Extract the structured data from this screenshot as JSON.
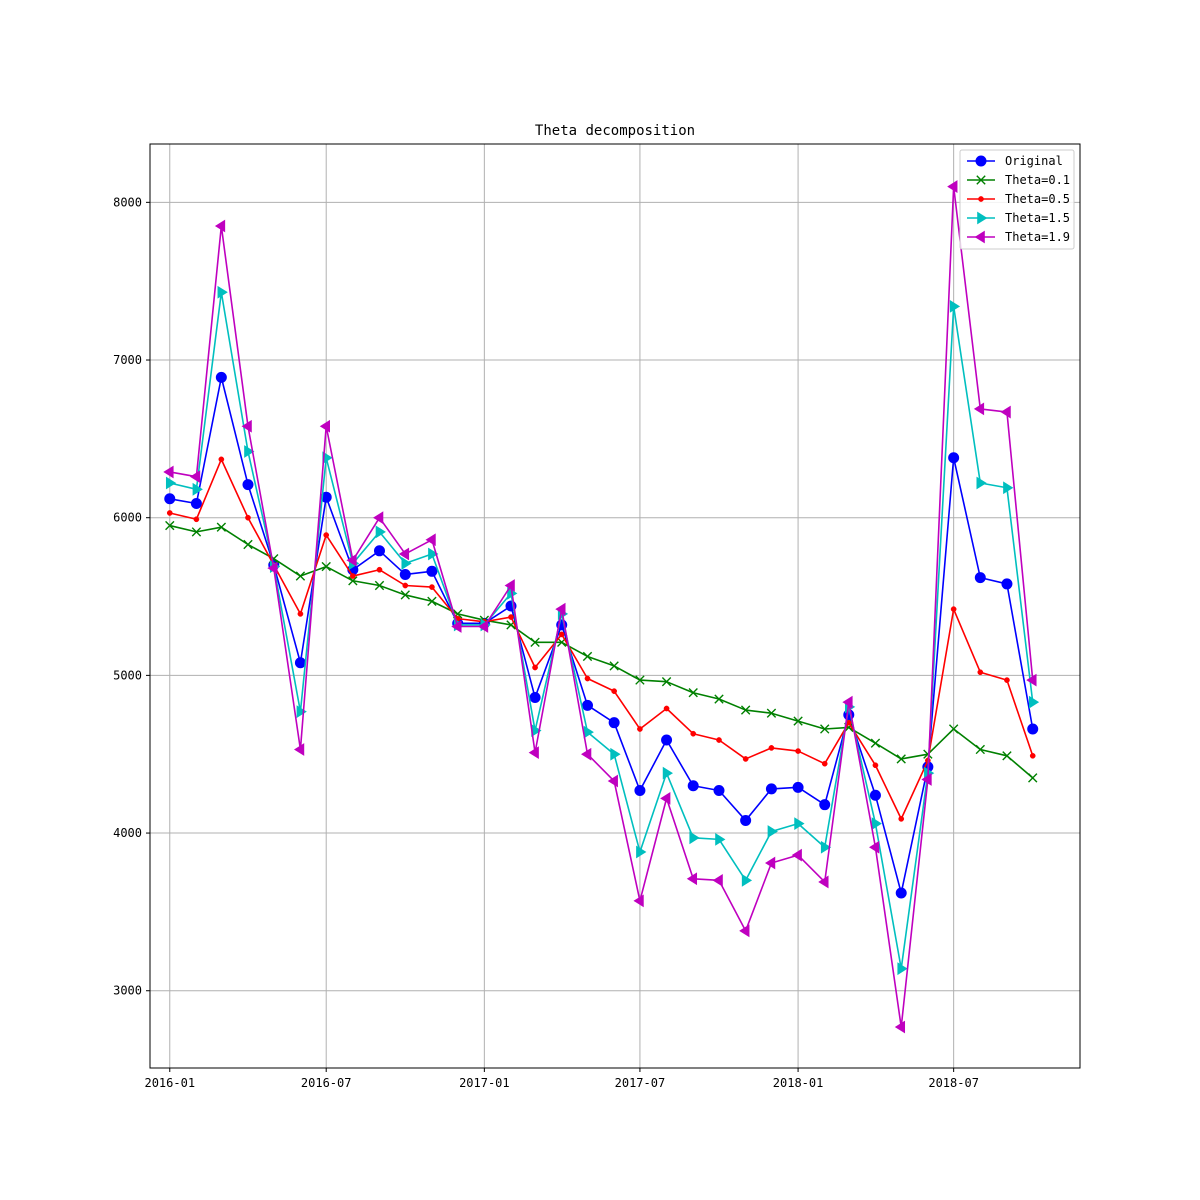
{
  "chart_data": {
    "type": "line",
    "title": "Theta decomposition",
    "xlabel": "",
    "ylabel": "",
    "x": [
      "2016-01",
      "2016-02",
      "2016-03",
      "2016-04",
      "2016-05",
      "2016-06",
      "2016-07",
      "2016-08",
      "2016-09",
      "2016-10",
      "2016-11",
      "2016-12",
      "2017-01",
      "2017-02",
      "2017-03",
      "2017-04",
      "2017-05",
      "2017-06",
      "2017-07",
      "2017-08",
      "2017-09",
      "2017-10",
      "2017-11",
      "2017-12",
      "2018-01",
      "2018-02",
      "2018-03",
      "2018-04",
      "2018-05",
      "2018-06",
      "2018-07",
      "2018-08",
      "2018-09",
      "2018-10"
    ],
    "x_range": [
      "2015-12-09",
      "2018-11-25"
    ],
    "ylim": [
      2510,
      8370
    ],
    "x_ticks": [
      "2016-01",
      "2016-07",
      "2017-01",
      "2017-07",
      "2018-01",
      "2018-07"
    ],
    "y_ticks": [
      3000,
      4000,
      5000,
      6000,
      7000,
      8000
    ],
    "grid": true,
    "legend_position": "upper right",
    "series": [
      {
        "name": "Original",
        "color": "#0000ff",
        "marker": "circle",
        "values": [
          6120,
          6090,
          6890,
          6210,
          5700,
          5080,
          6130,
          5670,
          5790,
          5640,
          5660,
          5330,
          5330,
          5440,
          4860,
          5320,
          4810,
          4700,
          4270,
          4590,
          4300,
          4270,
          4080,
          4280,
          4290,
          4180,
          4750,
          4240,
          3620,
          4420,
          6380,
          5620,
          5580,
          4660
        ]
      },
      {
        "name": "Theta=0.1",
        "color": "#008000",
        "marker": "x",
        "values": [
          5950,
          5910,
          5940,
          5830,
          5740,
          5630,
          5690,
          5600,
          5570,
          5510,
          5470,
          5390,
          5350,
          5320,
          5210,
          5210,
          5120,
          5060,
          4970,
          4960,
          4890,
          4850,
          4780,
          4760,
          4710,
          4660,
          4670,
          4570,
          4470,
          4500,
          4660,
          4530,
          4490,
          4350
        ]
      },
      {
        "name": "Theta=0.5",
        "color": "#ff0000",
        "marker": "dot",
        "values": [
          6030,
          5990,
          6370,
          6000,
          5700,
          5390,
          5890,
          5630,
          5670,
          5570,
          5560,
          5360,
          5340,
          5370,
          5050,
          5260,
          4980,
          4900,
          4660,
          4790,
          4630,
          4590,
          4470,
          4540,
          4520,
          4440,
          4700,
          4430,
          4090,
          4460,
          5420,
          5020,
          4970,
          4490
        ]
      },
      {
        "name": "Theta=1.5",
        "color": "#00bfbf",
        "marker": "triangle-right",
        "values": [
          6220,
          6180,
          7430,
          6420,
          5690,
          4770,
          6380,
          5710,
          5910,
          5710,
          5770,
          5320,
          5320,
          5520,
          4650,
          5390,
          4640,
          4500,
          3880,
          4380,
          3970,
          3960,
          3700,
          4010,
          4060,
          3910,
          4800,
          4060,
          3140,
          4380,
          7340,
          6220,
          6190,
          4830
        ]
      },
      {
        "name": "Theta=1.9",
        "color": "#bf00bf",
        "marker": "triangle-left",
        "values": [
          6290,
          6260,
          7850,
          6580,
          5680,
          4530,
          6580,
          5730,
          6000,
          5770,
          5860,
          5310,
          5310,
          5570,
          4510,
          5420,
          4500,
          4330,
          3570,
          4220,
          3710,
          3700,
          3380,
          3810,
          3860,
          3690,
          4830,
          3910,
          2770,
          4340,
          8100,
          6690,
          6670,
          4970
        ]
      }
    ]
  }
}
